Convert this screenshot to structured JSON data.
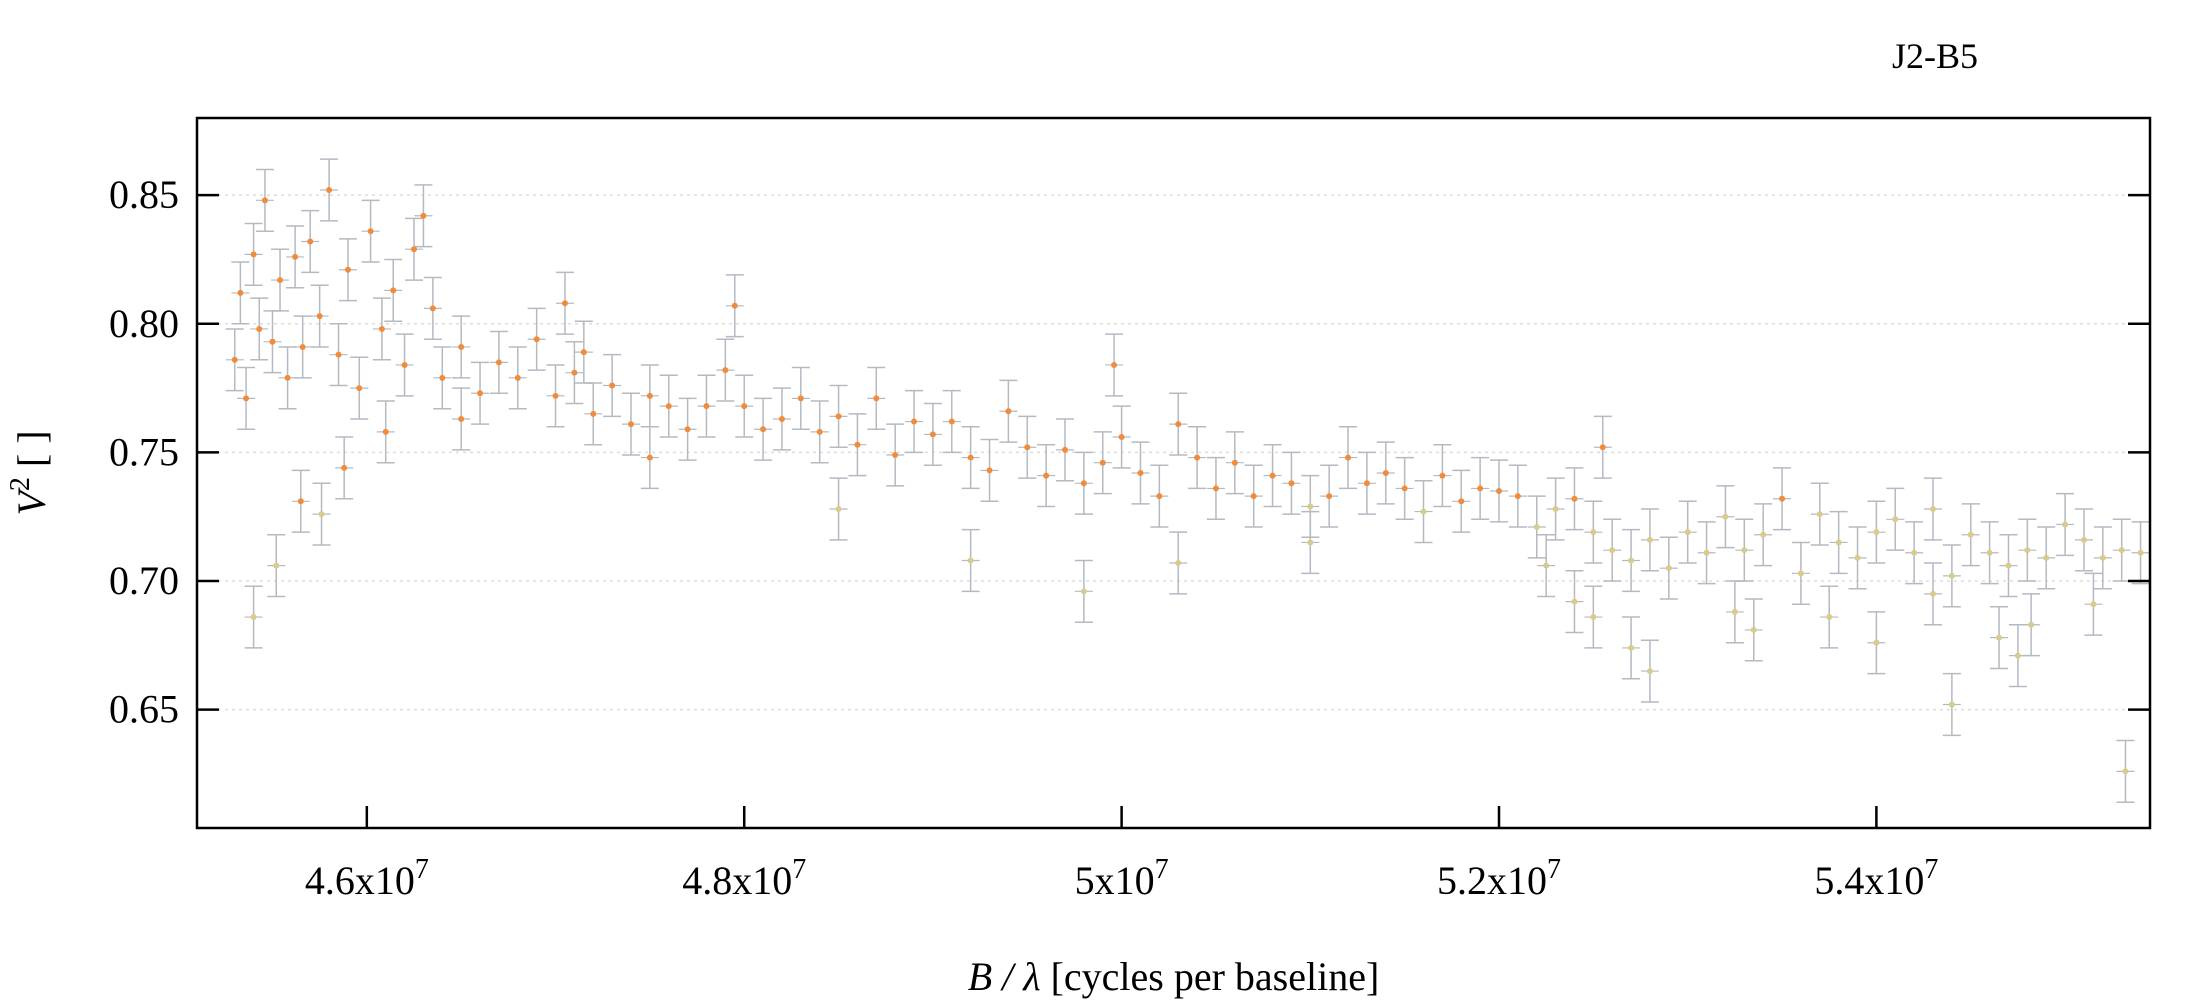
{
  "chart_data": {
    "type": "scatter",
    "title": "J2-B5",
    "xlabel": "B / λ [cycles per baseline]",
    "ylabel": "V² [ ]",
    "xlim": [
      45100000,
      55450000
    ],
    "ylim": [
      0.604,
      0.88
    ],
    "grid": true,
    "x_ticks": [
      {
        "value": 46000000,
        "mantissa": "4.6x10",
        "exp": "7"
      },
      {
        "value": 48000000,
        "mantissa": "4.8x10",
        "exp": "7"
      },
      {
        "value": 50000000,
        "mantissa": "5x10",
        "exp": "7"
      },
      {
        "value": 52000000,
        "mantissa": "5.2x10",
        "exp": "7"
      },
      {
        "value": 54000000,
        "mantissa": "5.4x10",
        "exp": "7"
      }
    ],
    "y_ticks": [
      "0.65",
      "0.70",
      "0.75",
      "0.80",
      "0.85"
    ],
    "colors": {
      "point_high": "#f08c3c",
      "point_low": "#d8cc8a",
      "errorbar": "#b4b9c2",
      "grid": "#dddddd",
      "axis": "#000000"
    },
    "error_bar_typical": 0.012,
    "series": [
      {
        "x": [
          45300000,
          45330000,
          45360000,
          45400000,
          45430000,
          45460000,
          45500000,
          45540000,
          45580000,
          45620000,
          45660000,
          45700000,
          45750000,
          45800000,
          45850000,
          45900000,
          45960000,
          46020000,
          46080000,
          46140000,
          46200000,
          46250000,
          46300000,
          46350000,
          46400000,
          46500000,
          46600000,
          46700000,
          46800000,
          46900000,
          47000000,
          47050000,
          47100000,
          47150000,
          47200000,
          47300000,
          47400000,
          47500000,
          47600000,
          47700000,
          47800000,
          47900000,
          47950000,
          48000000,
          48100000,
          48200000,
          48300000,
          48400000,
          48500000,
          48600000,
          48700000,
          48800000,
          48900000,
          49000000,
          49100000,
          49200000,
          49300000,
          49400000,
          49500000,
          49600000,
          49700000,
          49800000,
          49900000,
          49960000,
          50000000,
          50100000,
          50200000,
          50300000,
          50400000,
          50500000,
          50600000,
          50700000,
          50800000,
          50900000,
          51000000,
          51100000,
          51200000,
          51300000,
          51400000,
          51500000,
          51600000,
          51700000,
          51800000,
          51900000,
          52000000,
          52100000,
          52200000,
          52300000,
          52400000,
          52500000,
          52550000,
          52600000,
          52700000,
          52800000,
          52900000,
          53000000,
          53100000,
          53200000,
          53300000,
          53400000,
          53500000,
          53600000,
          53700000,
          53800000,
          53900000,
          54000000,
          54100000,
          54200000,
          54300000,
          54400000,
          54500000,
          54600000,
          54700000,
          54800000,
          54900000,
          55000000,
          55100000,
          55200000,
          55300000,
          55400000
        ],
        "y": [
          0.786,
          0.812,
          0.771,
          0.827,
          0.798,
          0.848,
          0.793,
          0.817,
          0.779,
          0.826,
          0.791,
          0.832,
          0.803,
          0.852,
          0.788,
          0.821,
          0.775,
          0.836,
          0.798,
          0.813,
          0.784,
          0.829,
          0.842,
          0.806,
          0.779,
          0.791,
          0.773,
          0.785,
          0.779,
          0.794,
          0.772,
          0.808,
          0.781,
          0.789,
          0.765,
          0.776,
          0.761,
          0.772,
          0.768,
          0.759,
          0.768,
          0.782,
          0.807,
          0.768,
          0.759,
          0.763,
          0.771,
          0.758,
          0.764,
          0.753,
          0.771,
          0.749,
          0.762,
          0.757,
          0.762,
          0.748,
          0.743,
          0.766,
          0.752,
          0.741,
          0.751,
          0.738,
          0.746,
          0.784,
          0.756,
          0.742,
          0.733,
          0.761,
          0.748,
          0.736,
          0.746,
          0.733,
          0.741,
          0.738,
          0.729,
          0.733,
          0.748,
          0.738,
          0.742,
          0.736,
          0.727,
          0.741,
          0.731,
          0.736,
          0.735,
          0.733,
          0.721,
          0.728,
          0.732,
          0.719,
          0.752,
          0.712,
          0.708,
          0.716,
          0.705,
          0.719,
          0.711,
          0.725,
          0.712,
          0.718,
          0.732,
          0.703,
          0.726,
          0.715,
          0.709,
          0.719,
          0.724,
          0.711,
          0.728,
          0.702,
          0.718,
          0.711,
          0.706,
          0.712,
          0.709,
          0.722,
          0.716,
          0.709,
          0.712,
          0.711
        ]
      },
      {
        "x": [
          45400000,
          45520000,
          45650000,
          45760000,
          45880000,
          46100000,
          46500000,
          47500000,
          48500000,
          49200000,
          49800000,
          50300000,
          51000000,
          52250000,
          52400000,
          52500000,
          52700000,
          52800000,
          53250000,
          53350000,
          53750000,
          54000000,
          54300000,
          54400000,
          54650000,
          54750000,
          54820000,
          55150000,
          55320000
        ],
        "y": [
          0.686,
          0.706,
          0.731,
          0.726,
          0.744,
          0.758,
          0.763,
          0.748,
          0.728,
          0.708,
          0.696,
          0.707,
          0.715,
          0.706,
          0.692,
          0.686,
          0.674,
          0.665,
          0.688,
          0.681,
          0.686,
          0.676,
          0.695,
          0.652,
          0.678,
          0.671,
          0.683,
          0.691,
          0.626
        ]
      }
    ]
  }
}
